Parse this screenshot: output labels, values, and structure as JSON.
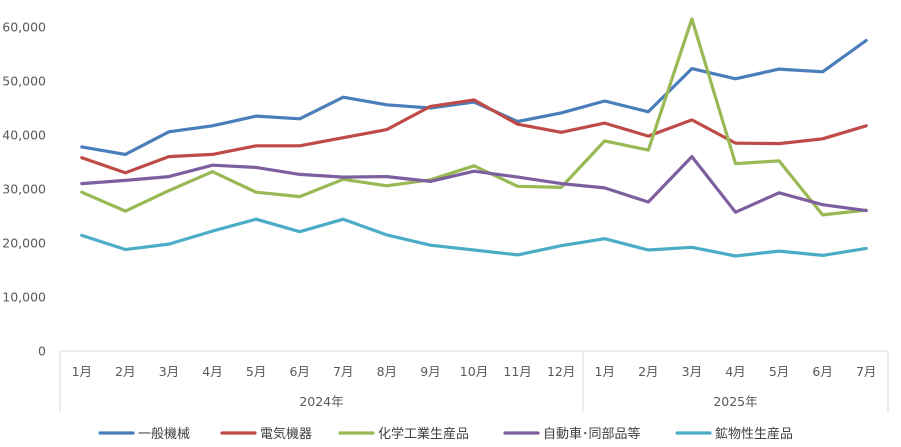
{
  "chart_data": {
    "type": "line",
    "title": "",
    "xlabel": "",
    "ylabel": "",
    "ylim": [
      0,
      60000
    ],
    "yticks": [
      "0",
      "10,000",
      "20,000",
      "30,000",
      "40,000",
      "50,000",
      "60,000"
    ],
    "grid": false,
    "legend": "bottom",
    "categories": [
      "1月",
      "2月",
      "3月",
      "4月",
      "5月",
      "6月",
      "7月",
      "8月",
      "9月",
      "10月",
      "11月",
      "12月",
      "1月",
      "2月",
      "3月",
      "4月",
      "5月",
      "6月",
      "7月"
    ],
    "groups": [
      {
        "label": "2024年",
        "count": 12
      },
      {
        "label": "2025年",
        "count": 7
      }
    ],
    "series": [
      {
        "name": "一般機械",
        "color": "#4a7ebb",
        "values": [
          37800,
          36400,
          40600,
          41700,
          43500,
          43000,
          47000,
          45600,
          45000,
          46100,
          42500,
          44100,
          46300,
          44300,
          52300,
          50400,
          52200,
          51700,
          57500
        ]
      },
      {
        "name": "電気機器",
        "color": "#be4b48",
        "values": [
          35800,
          33000,
          36000,
          36400,
          38000,
          38000,
          39500,
          41000,
          45300,
          46500,
          42000,
          40500,
          42200,
          39800,
          42800,
          38500,
          38400,
          39300,
          41700
        ]
      },
      {
        "name": "化学工業生産品",
        "color": "#98b954",
        "values": [
          29400,
          25900,
          29700,
          33200,
          29400,
          28600,
          31800,
          30600,
          31700,
          34300,
          30500,
          30300,
          38900,
          37200,
          61500,
          34700,
          35200,
          25200,
          26100
        ]
      },
      {
        "name": "自動車･同部品等",
        "color": "#7d5fa0",
        "values": [
          31000,
          31600,
          32300,
          34400,
          34000,
          32700,
          32200,
          32300,
          31400,
          33300,
          32200,
          31000,
          30200,
          27600,
          36000,
          25700,
          29300,
          27100,
          26000
        ]
      },
      {
        "name": "鉱物性生産品",
        "color": "#4bacc6",
        "values": [
          21400,
          18800,
          19800,
          22200,
          24400,
          22100,
          24400,
          21500,
          19600,
          18700,
          17800,
          19500,
          20800,
          18700,
          19200,
          17600,
          18500,
          17700,
          19000
        ]
      }
    ]
  }
}
